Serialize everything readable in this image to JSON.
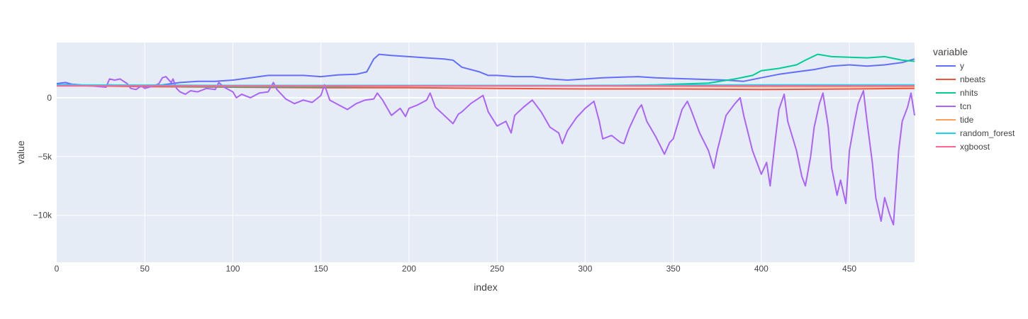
{
  "chart_data": {
    "type": "line",
    "title": "",
    "xlabel": "index",
    "ylabel": "value",
    "xlim": [
      0,
      487
    ],
    "ylim": [
      -14000,
      4700
    ],
    "x_ticks": [
      0,
      50,
      100,
      150,
      200,
      250,
      300,
      350,
      400,
      450
    ],
    "x_tick_labels": [
      "0",
      "50",
      "100",
      "150",
      "200",
      "250",
      "300",
      "350",
      "400",
      "450"
    ],
    "y_ticks": [
      0,
      -5000,
      -10000
    ],
    "y_tick_labels": [
      "0",
      "−5k",
      "−10k"
    ],
    "grid": true,
    "legend": {
      "title": "variable",
      "position": "right"
    },
    "series": [
      {
        "name": "y",
        "color": "#636efa",
        "points": [
          [
            0,
            1200
          ],
          [
            5,
            1300
          ],
          [
            10,
            1100
          ],
          [
            20,
            1000
          ],
          [
            30,
            1100
          ],
          [
            40,
            1000
          ],
          [
            50,
            1050
          ],
          [
            60,
            1100
          ],
          [
            70,
            1300
          ],
          [
            80,
            1400
          ],
          [
            90,
            1400
          ],
          [
            100,
            1500
          ],
          [
            110,
            1700
          ],
          [
            120,
            1900
          ],
          [
            130,
            1900
          ],
          [
            140,
            1900
          ],
          [
            150,
            1800
          ],
          [
            160,
            1950
          ],
          [
            170,
            2000
          ],
          [
            176,
            2200
          ],
          [
            180,
            3300
          ],
          [
            183,
            3700
          ],
          [
            190,
            3600
          ],
          [
            200,
            3500
          ],
          [
            210,
            3400
          ],
          [
            220,
            3300
          ],
          [
            225,
            3200
          ],
          [
            230,
            2600
          ],
          [
            240,
            2200
          ],
          [
            245,
            1900
          ],
          [
            250,
            1900
          ],
          [
            260,
            1800
          ],
          [
            270,
            1800
          ],
          [
            280,
            1600
          ],
          [
            290,
            1500
          ],
          [
            300,
            1600
          ],
          [
            310,
            1700
          ],
          [
            320,
            1750
          ],
          [
            330,
            1800
          ],
          [
            340,
            1700
          ],
          [
            350,
            1650
          ],
          [
            360,
            1600
          ],
          [
            370,
            1550
          ],
          [
            380,
            1500
          ],
          [
            390,
            1400
          ],
          [
            400,
            1700
          ],
          [
            410,
            2000
          ],
          [
            420,
            2200
          ],
          [
            430,
            2400
          ],
          [
            440,
            2700
          ],
          [
            450,
            2800
          ],
          [
            460,
            2700
          ],
          [
            470,
            2800
          ],
          [
            480,
            3000
          ],
          [
            487,
            3300
          ]
        ]
      },
      {
        "name": "nbeats",
        "color": "#ef553b",
        "points": [
          [
            0,
            1050
          ],
          [
            50,
            950
          ],
          [
            100,
            900
          ],
          [
            150,
            850
          ],
          [
            200,
            850
          ],
          [
            250,
            800
          ],
          [
            300,
            750
          ],
          [
            350,
            750
          ],
          [
            400,
            700
          ],
          [
            450,
            750
          ],
          [
            487,
            800
          ]
        ]
      },
      {
        "name": "nhits",
        "color": "#00cc96",
        "points": [
          [
            0,
            1100
          ],
          [
            50,
            1000
          ],
          [
            100,
            950
          ],
          [
            150,
            950
          ],
          [
            200,
            1000
          ],
          [
            250,
            1000
          ],
          [
            300,
            1000
          ],
          [
            340,
            1100
          ],
          [
            370,
            1250
          ],
          [
            385,
            1600
          ],
          [
            395,
            1900
          ],
          [
            400,
            2300
          ],
          [
            410,
            2500
          ],
          [
            420,
            2800
          ],
          [
            425,
            3200
          ],
          [
            432,
            3700
          ],
          [
            440,
            3500
          ],
          [
            450,
            3450
          ],
          [
            460,
            3400
          ],
          [
            470,
            3500
          ],
          [
            480,
            3200
          ],
          [
            487,
            3100
          ]
        ]
      },
      {
        "name": "tcn",
        "color": "#ab63fa",
        "points": [
          [
            0,
            1100
          ],
          [
            10,
            1150
          ],
          [
            20,
            1000
          ],
          [
            28,
            900
          ],
          [
            30,
            1600
          ],
          [
            33,
            1500
          ],
          [
            36,
            1600
          ],
          [
            40,
            1200
          ],
          [
            42,
            800
          ],
          [
            45,
            700
          ],
          [
            48,
            1000
          ],
          [
            50,
            800
          ],
          [
            55,
            1000
          ],
          [
            58,
            1200
          ],
          [
            60,
            1700
          ],
          [
            62,
            1800
          ],
          [
            65,
            1300
          ],
          [
            66,
            1600
          ],
          [
            68,
            800
          ],
          [
            70,
            500
          ],
          [
            73,
            300
          ],
          [
            76,
            600
          ],
          [
            80,
            500
          ],
          [
            85,
            800
          ],
          [
            90,
            700
          ],
          [
            92,
            1300
          ],
          [
            95,
            900
          ],
          [
            100,
            500
          ],
          [
            102,
            0
          ],
          [
            105,
            300
          ],
          [
            110,
            0
          ],
          [
            115,
            400
          ],
          [
            120,
            500
          ],
          [
            123,
            1300
          ],
          [
            125,
            700
          ],
          [
            130,
            -100
          ],
          [
            135,
            -500
          ],
          [
            140,
            -200
          ],
          [
            145,
            -400
          ],
          [
            150,
            200
          ],
          [
            152,
            1100
          ],
          [
            155,
            -200
          ],
          [
            160,
            -600
          ],
          [
            165,
            -1000
          ],
          [
            170,
            -500
          ],
          [
            175,
            -200
          ],
          [
            180,
            -100
          ],
          [
            182,
            400
          ],
          [
            185,
            -200
          ],
          [
            190,
            -1500
          ],
          [
            195,
            -900
          ],
          [
            198,
            -1600
          ],
          [
            200,
            -900
          ],
          [
            205,
            -600
          ],
          [
            210,
            -200
          ],
          [
            212,
            400
          ],
          [
            215,
            -800
          ],
          [
            220,
            -1500
          ],
          [
            225,
            -2200
          ],
          [
            228,
            -1400
          ],
          [
            230,
            -1200
          ],
          [
            235,
            -500
          ],
          [
            240,
            0
          ],
          [
            242,
            200
          ],
          [
            245,
            -1200
          ],
          [
            250,
            -2400
          ],
          [
            255,
            -2000
          ],
          [
            258,
            -3000
          ],
          [
            260,
            -1500
          ],
          [
            265,
            -800
          ],
          [
            270,
            -200
          ],
          [
            275,
            -1200
          ],
          [
            280,
            -2500
          ],
          [
            285,
            -3000
          ],
          [
            287,
            -3900
          ],
          [
            290,
            -2800
          ],
          [
            295,
            -1700
          ],
          [
            300,
            -900
          ],
          [
            305,
            -300
          ],
          [
            308,
            -2000
          ],
          [
            310,
            -3500
          ],
          [
            315,
            -3200
          ],
          [
            320,
            -3800
          ],
          [
            322,
            -3900
          ],
          [
            325,
            -2600
          ],
          [
            330,
            -1000
          ],
          [
            332,
            -600
          ],
          [
            335,
            -2000
          ],
          [
            340,
            -3300
          ],
          [
            345,
            -4800
          ],
          [
            348,
            -3800
          ],
          [
            350,
            -3500
          ],
          [
            355,
            -1000
          ],
          [
            358,
            -300
          ],
          [
            360,
            -1000
          ],
          [
            365,
            -3000
          ],
          [
            370,
            -4500
          ],
          [
            373,
            -6000
          ],
          [
            375,
            -4500
          ],
          [
            380,
            -1500
          ],
          [
            385,
            -500
          ],
          [
            388,
            0
          ],
          [
            390,
            -1500
          ],
          [
            395,
            -4500
          ],
          [
            400,
            -6500
          ],
          [
            403,
            -5500
          ],
          [
            405,
            -7500
          ],
          [
            408,
            -3500
          ],
          [
            410,
            -1000
          ],
          [
            413,
            300
          ],
          [
            415,
            -2000
          ],
          [
            420,
            -4500
          ],
          [
            423,
            -6700
          ],
          [
            425,
            -7500
          ],
          [
            428,
            -5000
          ],
          [
            430,
            -2500
          ],
          [
            433,
            -500
          ],
          [
            435,
            400
          ],
          [
            438,
            -2500
          ],
          [
            440,
            -6000
          ],
          [
            443,
            -8300
          ],
          [
            445,
            -7000
          ],
          [
            448,
            -9000
          ],
          [
            450,
            -4500
          ],
          [
            453,
            -2000
          ],
          [
            455,
            -500
          ],
          [
            458,
            600
          ],
          [
            460,
            -2000
          ],
          [
            463,
            -5500
          ],
          [
            465,
            -8500
          ],
          [
            468,
            -10500
          ],
          [
            470,
            -8500
          ],
          [
            473,
            -10000
          ],
          [
            475,
            -10800
          ],
          [
            478,
            -4500
          ],
          [
            480,
            -2000
          ],
          [
            483,
            -800
          ],
          [
            485,
            400
          ],
          [
            487,
            -1500
          ]
        ]
      },
      {
        "name": "tide",
        "color": "#ffa15a",
        "points": [
          [
            0,
            1050
          ],
          [
            100,
            1000
          ],
          [
            200,
            1000
          ],
          [
            300,
            1000
          ],
          [
            400,
            950
          ],
          [
            487,
            950
          ]
        ]
      },
      {
        "name": "random_forest",
        "color": "#19d3f3",
        "points": [
          [
            0,
            1100
          ],
          [
            100,
            1050
          ],
          [
            200,
            1050
          ],
          [
            300,
            1050
          ],
          [
            400,
            1100
          ],
          [
            487,
            1100
          ]
        ]
      },
      {
        "name": "xgboost",
        "color": "#ff6692",
        "points": [
          [
            0,
            1000
          ],
          [
            100,
            1000
          ],
          [
            200,
            1000
          ],
          [
            300,
            1000
          ],
          [
            400,
            1000
          ],
          [
            487,
            1000
          ]
        ]
      }
    ]
  }
}
